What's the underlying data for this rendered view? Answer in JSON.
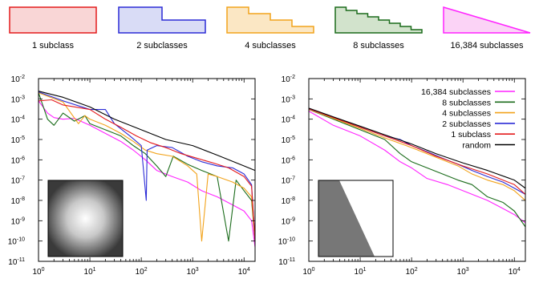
{
  "shapes": [
    {
      "label": "1 subclass",
      "color": "#e41a1c",
      "fill": "#f9d6d6",
      "kind": "rect"
    },
    {
      "label": "2 subclasses",
      "color": "#2b2bd6",
      "fill": "#d9dcf6",
      "kind": "steps2"
    },
    {
      "label": "4 subclasses",
      "color": "#f2a31b",
      "fill": "#fbe7c4",
      "kind": "steps4"
    },
    {
      "label": "8 subclasses",
      "color": "#1a6b1a",
      "fill": "#d2e3cc",
      "kind": "steps8"
    },
    {
      "label": "16,384 subclasses",
      "color": "#ff22ff",
      "fill": "#fbd3f6",
      "kind": "triangle"
    }
  ],
  "chart_data": [
    {
      "type": "line",
      "xscale": "log",
      "yscale": "log",
      "xlim": [
        1,
        16384
      ],
      "ylim": [
        1e-11,
        0.01
      ],
      "x_ticks": [
        "10",
        "10",
        "10",
        "10",
        "10"
      ],
      "x_tick_exps": [
        "0",
        "1",
        "2",
        "3",
        "4"
      ],
      "y_ticks": [
        "10",
        "10",
        "10",
        "10",
        "10",
        "10",
        "10",
        "10",
        "10",
        "10"
      ],
      "y_tick_exps": [
        "-2",
        "-3",
        "-4",
        "-5",
        "-6",
        "-7",
        "-8",
        "-9",
        "-10",
        "-11"
      ],
      "inset": "radial-gradient",
      "series": [
        {
          "color": "#ff22ff",
          "points": [
            [
              1,
              0.0008
            ],
            [
              1.5,
              0.0002
            ],
            [
              2,
              0.00012
            ],
            [
              3,
              0.0001
            ],
            [
              5,
              0.00011
            ],
            [
              10,
              5e-05
            ],
            [
              20,
              2e-05
            ],
            [
              40,
              8e-06
            ],
            [
              70,
              3e-06
            ],
            [
              120,
              1e-06
            ],
            [
              200,
              3e-07
            ],
            [
              400,
              1.5e-07
            ],
            [
              800,
              8e-08
            ],
            [
              1500,
              3e-08
            ],
            [
              3000,
              1.5e-08
            ],
            [
              6000,
              6e-09
            ],
            [
              10000,
              3e-09
            ],
            [
              14000,
              1e-09
            ],
            [
              16384,
              5e-11
            ]
          ]
        },
        {
          "color": "#1a6b1a",
          "points": [
            [
              1,
              0.002
            ],
            [
              1.5,
              0.0001
            ],
            [
              2,
              5e-05
            ],
            [
              3,
              0.0002
            ],
            [
              5,
              8e-05
            ],
            [
              8,
              0.00015
            ],
            [
              10,
              6e-05
            ],
            [
              20,
              3e-05
            ],
            [
              40,
              1.5e-05
            ],
            [
              70,
              5e-06
            ],
            [
              120,
              2e-06
            ],
            [
              200,
              5e-07
            ],
            [
              300,
              1.5e-07
            ],
            [
              420,
              1.5e-06
            ],
            [
              800,
              6e-07
            ],
            [
              1500,
              3e-07
            ],
            [
              3000,
              1.5e-07
            ],
            [
              5000,
              1e-10
            ],
            [
              7000,
              1e-07
            ],
            [
              10000,
              3e-08
            ],
            [
              14000,
              1e-08
            ],
            [
              16384,
              1e-10
            ]
          ]
        },
        {
          "color": "#f2a31b",
          "points": [
            [
              1,
              0.002
            ],
            [
              3,
              0.0007
            ],
            [
              6,
              6e-05
            ],
            [
              8,
              0.00015
            ],
            [
              10,
              0.0001
            ],
            [
              20,
              5e-05
            ],
            [
              40,
              2e-05
            ],
            [
              70,
              8e-06
            ],
            [
              120,
              3e-06
            ],
            [
              200,
              2e-06
            ],
            [
              400,
              1.5e-06
            ],
            [
              800,
              5e-07
            ],
            [
              1200,
              2e-07
            ],
            [
              1500,
              1e-10
            ],
            [
              2000,
              2e-07
            ],
            [
              3000,
              1.5e-07
            ],
            [
              6000,
              8e-08
            ],
            [
              10000,
              4e-08
            ],
            [
              14000,
              1.5e-08
            ],
            [
              16384,
              1e-10
            ]
          ]
        },
        {
          "color": "#2b2bd6",
          "points": [
            [
              1,
              0.0022
            ],
            [
              3,
              0.0008
            ],
            [
              10,
              0.0003
            ],
            [
              20,
              0.0003
            ],
            [
              30,
              6e-05
            ],
            [
              60,
              1.5e-05
            ],
            [
              100,
              5e-06
            ],
            [
              125,
              1e-08
            ],
            [
              130,
              3e-06
            ],
            [
              200,
              5e-06
            ],
            [
              400,
              4e-06
            ],
            [
              800,
              1.5e-06
            ],
            [
              1500,
              8e-07
            ],
            [
              3000,
              5e-07
            ],
            [
              6000,
              4e-07
            ],
            [
              10000,
              2e-07
            ],
            [
              14000,
              6e-08
            ],
            [
              16384,
              1e-10
            ]
          ]
        },
        {
          "color": "#e41a1c",
          "points": [
            [
              1,
              0.0008
            ],
            [
              1.8,
              0.0009
            ],
            [
              3,
              0.0005
            ],
            [
              10,
              0.0003
            ],
            [
              20,
              0.0001
            ],
            [
              40,
              4e-05
            ],
            [
              80,
              1.5e-05
            ],
            [
              150,
              7e-06
            ],
            [
              300,
              4e-06
            ],
            [
              600,
              2e-06
            ],
            [
              1200,
              1.2e-06
            ],
            [
              2500,
              7e-07
            ],
            [
              5000,
              4e-07
            ],
            [
              10000,
              1.5e-07
            ],
            [
              14000,
              5e-08
            ],
            [
              16384,
              1e-10
            ]
          ]
        },
        {
          "color": "#000000",
          "points": [
            [
              1,
              0.0024
            ],
            [
              3,
              0.0012
            ],
            [
              10,
              0.0004
            ],
            [
              30,
              0.0001
            ],
            [
              100,
              3e-05
            ],
            [
              300,
              1e-05
            ],
            [
              1000,
              5e-06
            ],
            [
              3000,
              1.7e-06
            ],
            [
              10000,
              5e-07
            ],
            [
              16384,
              3e-07
            ]
          ]
        }
      ]
    },
    {
      "type": "line",
      "xscale": "log",
      "yscale": "log",
      "xlim": [
        1,
        16384
      ],
      "ylim": [
        1e-11,
        0.01
      ],
      "x_ticks": [
        "10",
        "10",
        "10",
        "10",
        "10"
      ],
      "x_tick_exps": [
        "0",
        "1",
        "2",
        "3",
        "4"
      ],
      "y_ticks": [
        "10",
        "10",
        "10",
        "10",
        "10",
        "10",
        "10",
        "10",
        "10",
        "10"
      ],
      "y_tick_exps": [
        "-2",
        "-3",
        "-4",
        "-5",
        "-6",
        "-7",
        "-8",
        "-9",
        "-10",
        "-11"
      ],
      "inset": "gray-triangle",
      "legend": "top-right",
      "series": [
        {
          "name": "16,384 subclasses",
          "color": "#ff22ff",
          "points": [
            [
              1,
              0.00025
            ],
            [
              3,
              5e-05
            ],
            [
              10,
              1.5e-05
            ],
            [
              30,
              3e-06
            ],
            [
              60,
              8e-07
            ],
            [
              100,
              4e-07
            ],
            [
              200,
              1.2e-07
            ],
            [
              500,
              6e-08
            ],
            [
              1000,
              3e-08
            ],
            [
              3000,
              1e-08
            ],
            [
              6000,
              4e-09
            ],
            [
              10000,
              2e-09
            ],
            [
              16384,
              8e-10
            ]
          ]
        },
        {
          "name": "8 subclasses",
          "color": "#1a6b1a",
          "points": [
            [
              1,
              0.0003
            ],
            [
              3,
              0.0001
            ],
            [
              10,
              3e-05
            ],
            [
              30,
              1e-05
            ],
            [
              60,
              2e-06
            ],
            [
              100,
              8e-07
            ],
            [
              200,
              4e-07
            ],
            [
              400,
              2e-07
            ],
            [
              800,
              1e-07
            ],
            [
              1500,
              6e-08
            ],
            [
              3000,
              1.5e-08
            ],
            [
              6000,
              8e-09
            ],
            [
              10000,
              3e-09
            ],
            [
              16384,
              5e-10
            ]
          ]
        },
        {
          "name": "4 subclasses",
          "color": "#f2a31b",
          "points": [
            [
              1,
              0.0003
            ],
            [
              3,
              0.00011
            ],
            [
              10,
              3.5e-05
            ],
            [
              30,
              1.2e-05
            ],
            [
              100,
              4e-06
            ],
            [
              200,
              2e-06
            ],
            [
              400,
              1e-06
            ],
            [
              800,
              5e-07
            ],
            [
              1500,
              2e-07
            ],
            [
              3000,
              1e-07
            ],
            [
              6000,
              6e-08
            ],
            [
              10000,
              3e-08
            ],
            [
              16384,
              1e-08
            ]
          ]
        },
        {
          "name": "2 subclasses",
          "color": "#2b2bd6",
          "points": [
            [
              1,
              0.00032
            ],
            [
              3,
              0.00012
            ],
            [
              10,
              4e-05
            ],
            [
              30,
              1.5e-05
            ],
            [
              60,
              1e-05
            ],
            [
              100,
              5e-06
            ],
            [
              200,
              2.5e-06
            ],
            [
              400,
              1.2e-06
            ],
            [
              800,
              6e-07
            ],
            [
              1500,
              3e-07
            ],
            [
              3000,
              1.5e-07
            ],
            [
              6000,
              8e-08
            ],
            [
              10000,
              4e-08
            ],
            [
              16384,
              2e-08
            ]
          ]
        },
        {
          "name": "1 subclass",
          "color": "#e41a1c",
          "points": [
            [
              1,
              0.00033
            ],
            [
              3,
              0.00012
            ],
            [
              10,
              4e-05
            ],
            [
              30,
              1.5e-05
            ],
            [
              100,
              5e-06
            ],
            [
              300,
              1.5e-06
            ],
            [
              1000,
              5e-07
            ],
            [
              3000,
              2e-07
            ],
            [
              6000,
              1e-07
            ],
            [
              10000,
              6e-08
            ],
            [
              16384,
              2e-08
            ]
          ]
        },
        {
          "name": "random",
          "color": "#000000",
          "points": [
            [
              1,
              0.00035
            ],
            [
              3,
              0.00013
            ],
            [
              10,
              4.5e-05
            ],
            [
              30,
              1.7e-05
            ],
            [
              100,
              6e-06
            ],
            [
              300,
              2e-06
            ],
            [
              1000,
              7e-07
            ],
            [
              3000,
              3e-07
            ],
            [
              10000,
              1e-07
            ],
            [
              16384,
              4e-08
            ]
          ]
        }
      ]
    }
  ]
}
